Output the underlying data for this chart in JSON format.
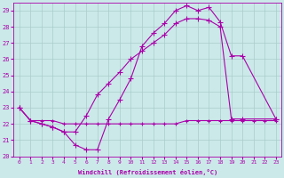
{
  "xlabel": "Windchill (Refroidissement éolien,°C)",
  "xlim": [
    -0.5,
    23.5
  ],
  "ylim": [
    20,
    29.5
  ],
  "background_color": "#cbe9e9",
  "line_color": "#aa00aa",
  "grid_color": "#aacccc",
  "xticks": [
    0,
    1,
    2,
    3,
    4,
    5,
    6,
    7,
    8,
    9,
    10,
    11,
    12,
    13,
    14,
    15,
    16,
    17,
    18,
    19,
    20,
    21,
    22,
    23
  ],
  "yticks": [
    20,
    21,
    22,
    23,
    24,
    25,
    26,
    27,
    28,
    29
  ],
  "line1_x": [
    0,
    1,
    2,
    3,
    4,
    5,
    6,
    7,
    8,
    9,
    10,
    11,
    12,
    13,
    14,
    15,
    16,
    17,
    18,
    19,
    20,
    23
  ],
  "line1_y": [
    23.0,
    22.2,
    22.0,
    21.8,
    21.5,
    20.7,
    20.4,
    20.4,
    22.3,
    23.5,
    24.8,
    26.8,
    27.6,
    28.2,
    29.0,
    29.3,
    29.0,
    29.2,
    28.3,
    26.2,
    26.2,
    22.3
  ],
  "line2_x": [
    0,
    1,
    2,
    3,
    4,
    5,
    6,
    7,
    8,
    9,
    10,
    11,
    12,
    13,
    14,
    15,
    16,
    17,
    18,
    19,
    20,
    23
  ],
  "line2_y": [
    23.0,
    22.2,
    22.0,
    21.8,
    21.5,
    21.5,
    22.5,
    23.8,
    24.5,
    25.2,
    26.0,
    26.5,
    27.0,
    27.5,
    28.2,
    28.5,
    28.5,
    28.4,
    28.0,
    22.3,
    22.3,
    22.3
  ],
  "line3_x": [
    0,
    1,
    2,
    3,
    4,
    5,
    6,
    7,
    8,
    9,
    10,
    11,
    12,
    13,
    14,
    15,
    16,
    17,
    18,
    19,
    20,
    21,
    22,
    23
  ],
  "line3_y": [
    23.0,
    22.2,
    22.2,
    22.2,
    22.0,
    22.0,
    22.0,
    22.0,
    22.0,
    22.0,
    22.0,
    22.0,
    22.0,
    22.0,
    22.0,
    22.2,
    22.2,
    22.2,
    22.2,
    22.2,
    22.2,
    22.2,
    22.2,
    22.2
  ]
}
